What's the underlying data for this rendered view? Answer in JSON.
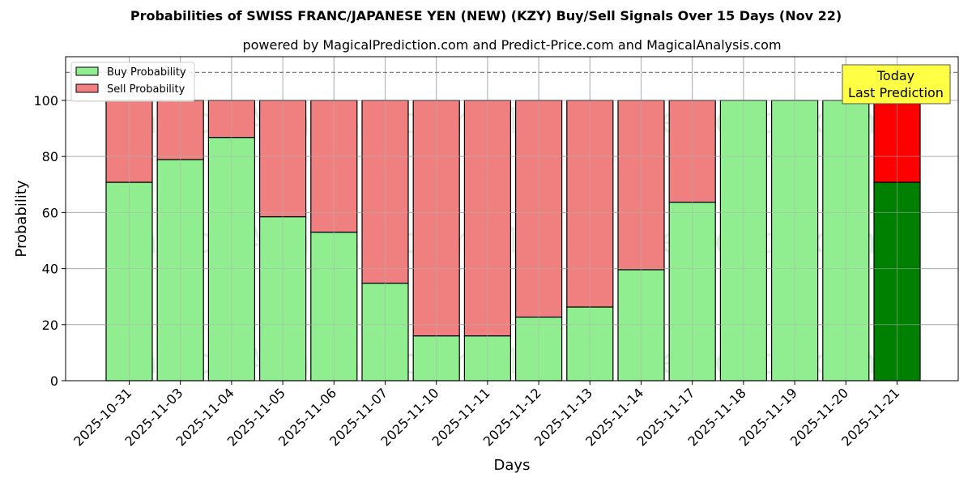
{
  "chart_data": {
    "type": "bar",
    "stacked": true,
    "title": "Probabilities of SWISS FRANC/JAPANESE YEN (NEW) (KZY) Buy/Sell Signals Over 15 Days (Nov 22)",
    "subtitle": "powered by MagicalPrediction.com and Predict-Price.com and MagicalAnalysis.com",
    "xlabel": "Days",
    "ylabel": "Probability",
    "ylim": [
      0,
      115.6
    ],
    "yticks": [
      0,
      20,
      40,
      60,
      80,
      100
    ],
    "grid": true,
    "legend_position": "upper left",
    "categories": [
      "2025-10-31",
      "2025-11-03",
      "2025-11-04",
      "2025-11-05",
      "2025-11-06",
      "2025-11-07",
      "2025-11-10",
      "2025-11-11",
      "2025-11-12",
      "2025-11-13",
      "2025-11-14",
      "2025-11-17",
      "2025-11-18",
      "2025-11-19",
      "2025-11-20",
      "2025-11-21"
    ],
    "series": [
      {
        "name": "Buy Probability",
        "color": "#90ee90",
        "values": [
          70.8,
          78.9,
          86.8,
          58.5,
          53.0,
          34.8,
          16.0,
          16.0,
          22.7,
          26.3,
          39.6,
          63.7,
          100.0,
          100.0,
          100.0,
          70.8
        ]
      },
      {
        "name": "Sell Probability",
        "color": "#f08080",
        "values": [
          29.2,
          21.1,
          13.2,
          41.5,
          47.0,
          65.2,
          84.0,
          84.0,
          77.3,
          73.7,
          60.4,
          36.3,
          0.0,
          0.0,
          0.0,
          29.2
        ]
      }
    ],
    "highlight": {
      "index": 15,
      "buy_color": "#008000",
      "sell_color": "#ff0000"
    },
    "reference_line": {
      "y": 110,
      "style": "dashed",
      "color": "#808080"
    },
    "annotation": {
      "text_line1": "Today",
      "text_line2": "Last Prediction",
      "background": "#ffff44"
    },
    "watermarks": [
      "MagicalAnalysis.com",
      "MagicalPrediction.com"
    ]
  }
}
